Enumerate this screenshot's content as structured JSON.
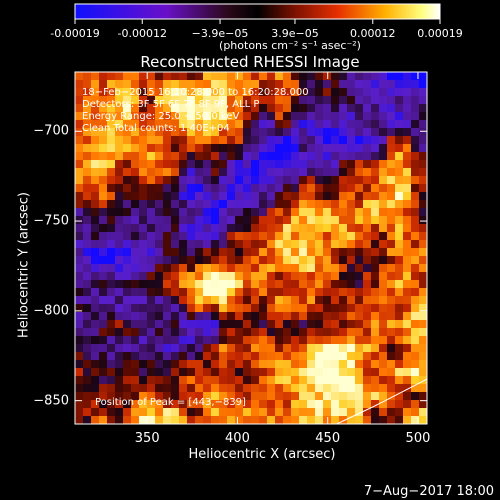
{
  "colorbar": {
    "ticks": [
      "-0.00019",
      "-0.00012",
      "−3.9e−05",
      "3.9e−05",
      "0.00012",
      "0.00019"
    ],
    "tick_values": [
      -0.00019,
      -0.00012,
      -3.9e-05,
      3.9e-05,
      0.00012,
      0.00019
    ],
    "unit_label": "(photons cm⁻² s⁻¹ asec⁻²)"
  },
  "chart_data": {
    "type": "heatmap",
    "title": "Reconstructed RHESSI Image",
    "xlabel": "Heliocentric X (arcsec)",
    "ylabel": "Heliocentric Y (arcsec)",
    "xlim": [
      310,
      505
    ],
    "ylim": [
      -863,
      -667
    ],
    "x_ticks": [
      "350",
      "400",
      "450",
      "500"
    ],
    "x_tick_values": [
      350,
      400,
      450,
      500
    ],
    "y_ticks": [
      "−700",
      "−750",
      "−800",
      "−850"
    ],
    "y_tick_values": [
      -700,
      -750,
      -800,
      -850
    ],
    "colormap": "RHESSI blue-purple-red-yellow-white",
    "value_range": [
      -0.00019,
      0.00019
    ],
    "info_lines": [
      "18−Feb−2015 16:10:28.000 to 16:20:28.000",
      "Detectors: 3F 5F 6F 7F 8F 9F, ALL P",
      "Energy Range: 25.0 − 50.0 keV",
      "Clean     Total counts: 1.40E+04"
    ],
    "peak_label": "Position of Peak = [443,−839]",
    "peak": [
      443,
      -839
    ],
    "limb_curve": [
      [
        455,
        -863
      ],
      [
        476,
        -853
      ],
      [
        505,
        -838
      ]
    ]
  },
  "footer": {
    "date": "7−Aug−2017 18:00"
  }
}
